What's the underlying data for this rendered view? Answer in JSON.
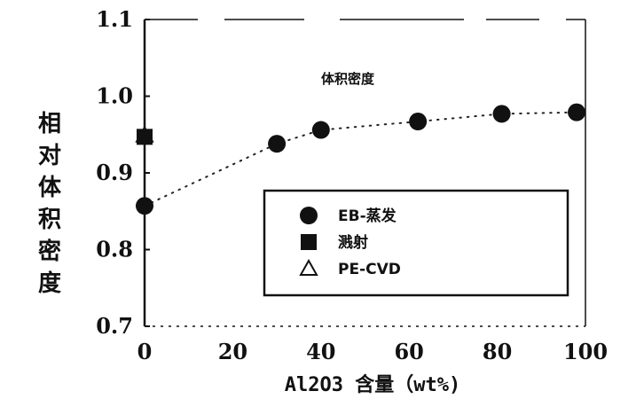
{
  "chart_data": {
    "type": "scatter",
    "ylabel": "相对体积密度",
    "xlabel": "Al2O3 含量（wt%)",
    "annotation": "体积密度",
    "xlim": [
      0,
      100
    ],
    "ylim": [
      0.7,
      1.1
    ],
    "x_ticks": [
      "0",
      "20",
      "40",
      "60",
      "80",
      "100"
    ],
    "y_ticks": [
      "1.1",
      "1.0",
      "0.9",
      "0.8",
      "0.7"
    ],
    "grid": false,
    "legend_position": "lower-right",
    "series": [
      {
        "name": "EB-蒸发",
        "marker": "circle",
        "x": [
          0,
          30,
          40,
          62,
          81,
          98
        ],
        "y": [
          0.857,
          0.938,
          0.956,
          0.967,
          0.977,
          0.979
        ]
      },
      {
        "name": "溅射",
        "marker": "square",
        "x": [
          0
        ],
        "y": [
          0.947
        ]
      },
      {
        "name": "PE-CVD",
        "marker": "triangle",
        "x": [
          0
        ],
        "y": [
          0.949
        ]
      }
    ]
  }
}
